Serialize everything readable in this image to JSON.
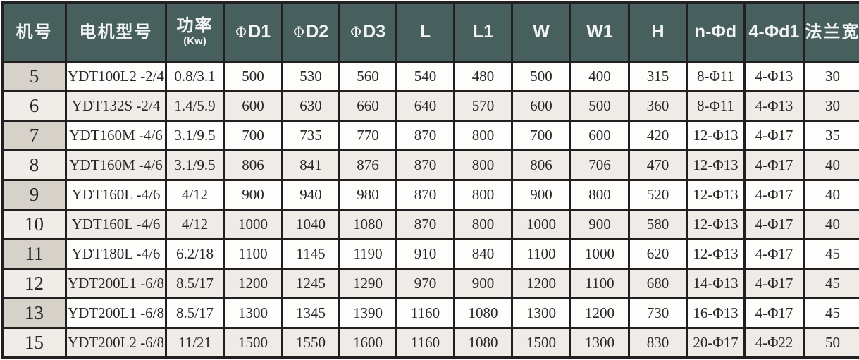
{
  "colors": {
    "header_bg": "#47605e",
    "header_text": "#f2f4f3",
    "border": "#231f20",
    "row_white": "#fdfdfc",
    "row_beige": "#efebe6",
    "number_cell_gray": "#d6d1c9",
    "number_cell_beige": "#f0ece7"
  },
  "header_cells": [
    {
      "label": "机号",
      "kind": "cjk"
    },
    {
      "label": "电机型号",
      "kind": "cjk"
    },
    {
      "label": "功率",
      "sub": "(Kw)",
      "kind": "cjk"
    },
    {
      "phi": "Φ",
      "label": "D1",
      "kind": "sym"
    },
    {
      "phi": "Φ",
      "label": "D2",
      "kind": "sym"
    },
    {
      "phi": "Φ",
      "label": "D3",
      "kind": "sym"
    },
    {
      "label": "L",
      "kind": "sym"
    },
    {
      "label": "L1",
      "kind": "sym"
    },
    {
      "label": "W",
      "kind": "sym"
    },
    {
      "label": "W1",
      "kind": "sym"
    },
    {
      "label": "H",
      "kind": "sym"
    },
    {
      "label": "n-Φd",
      "kind": "sym"
    },
    {
      "label": "4-Φd1",
      "kind": "sym"
    },
    {
      "label": "法兰宽",
      "kind": "cjk"
    }
  ],
  "chart_data": {
    "type": "table",
    "title": "",
    "columns": [
      "机号",
      "电机型号",
      "功率(Kw)",
      "ΦD1",
      "ΦD2",
      "ΦD3",
      "L",
      "L1",
      "W",
      "W1",
      "H",
      "n-Φd",
      "4-Φd1",
      "法兰宽"
    ],
    "rows": [
      [
        "5",
        "YDT100L2 -2/4",
        "0.8/3.1",
        "500",
        "530",
        "560",
        "540",
        "480",
        "500",
        "400",
        "315",
        "8-Φ11",
        "4-Φ13",
        "30"
      ],
      [
        "6",
        "YDT132S -2/4",
        "1.4/5.9",
        "600",
        "630",
        "660",
        "640",
        "570",
        "600",
        "500",
        "360",
        "8-Φ11",
        "4-Φ13",
        "30"
      ],
      [
        "7",
        "YDT160M -4/6",
        "3.1/9.5",
        "700",
        "735",
        "770",
        "870",
        "800",
        "700",
        "600",
        "420",
        "12-Φ13",
        "4-Φ17",
        "35"
      ],
      [
        "8",
        "YDT160M -4/6",
        "3.1/9.5",
        "806",
        "841",
        "876",
        "870",
        "800",
        "806",
        "706",
        "470",
        "12-Φ13",
        "4-Φ17",
        "40"
      ],
      [
        "9",
        "YDT160L -4/6",
        "4/12",
        "900",
        "940",
        "980",
        "870",
        "800",
        "900",
        "800",
        "520",
        "12-Φ13",
        "4-Φ17",
        "40"
      ],
      [
        "10",
        "YDT160L -4/6",
        "4/12",
        "1000",
        "1040",
        "1080",
        "870",
        "800",
        "1000",
        "900",
        "580",
        "12-Φ13",
        "4-Φ17",
        "40"
      ],
      [
        "11",
        "YDT180L -4/6",
        "6.2/18",
        "1100",
        "1145",
        "1190",
        "910",
        "840",
        "1100",
        "1000",
        "620",
        "12-Φ13",
        "4-Φ17",
        "45"
      ],
      [
        "12",
        "YDT200L1 -6/8",
        "8.5/17",
        "1200",
        "1245",
        "1290",
        "970",
        "900",
        "1200",
        "1100",
        "680",
        "14-Φ13",
        "4-Φ17",
        "45"
      ],
      [
        "13",
        "YDT200L1 -6/8",
        "8.5/17",
        "1300",
        "1345",
        "1390",
        "1160",
        "1080",
        "1300",
        "1200",
        "730",
        "16-Φ13",
        "4-Φ17",
        "45"
      ],
      [
        "15",
        "YDT200L2 -6/8",
        "11/21",
        "1500",
        "1550",
        "1600",
        "1160",
        "1080",
        "1500",
        "1300",
        "830",
        "20-Φ17",
        "4-Φ22",
        "50"
      ]
    ]
  }
}
